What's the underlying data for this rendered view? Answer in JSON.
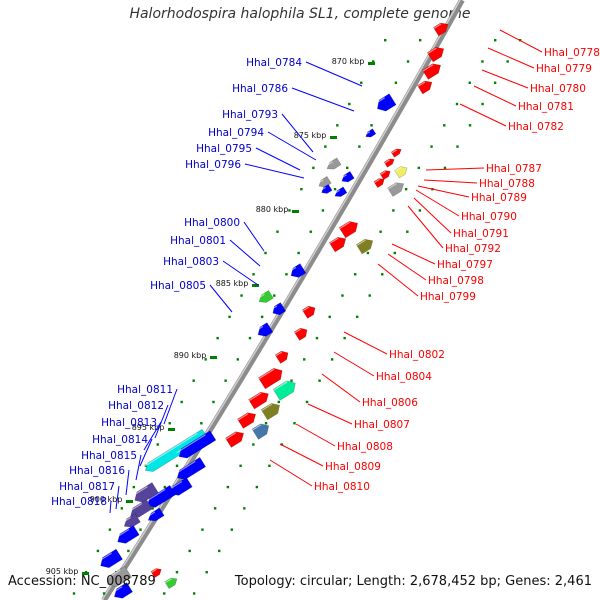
{
  "title": "Halorhodospira halophila SL1, complete genome",
  "footer": {
    "accession": "Accession: NC_008789",
    "summary": "Topology: circular; Length: 2,678,452 bp; Genes: 2,461"
  },
  "colors": {
    "backbone": "#8c8c8c",
    "forward_strand_gene": "#ff0000",
    "reverse_strand_gene": "#0000ff",
    "forward_label": "#ff0000",
    "reverse_label": "#0000cc",
    "tick": "#008000",
    "rna_green": "#33cc33",
    "olive": "#808020",
    "cyan": "#00e5e5",
    "teal": "#00ee99",
    "steel_blue": "#4477aa",
    "slate": "#554499",
    "gray": "#999999",
    "yellow": "#eeee66"
  },
  "scale_ticks": [
    "870 kbp",
    "875 kbp",
    "880 kbp",
    "885 kbp",
    "890 kbp",
    "895 kbp",
    "900 kbp",
    "905 kbp"
  ],
  "reverse_labels": [
    "Hhal_0784",
    "Hhal_0786",
    "Hhal_0793",
    "Hhal_0794",
    "Hhal_0795",
    "Hhal_0796",
    "Hhal_0800",
    "Hhal_0801",
    "Hhal_0803",
    "Hhal_0805",
    "Hhal_0811",
    "Hhal_0812",
    "Hhal_0813",
    "Hhal_0814",
    "Hhal_0815",
    "Hhal_0816",
    "Hhal_0817",
    "Hhal_0818"
  ],
  "forward_labels": [
    "Hhal_0778",
    "Hhal_0779",
    "Hhal_0780",
    "Hhal_0781",
    "Hhal_0782",
    "Hhal_0787",
    "Hhal_0788",
    "Hhal_0789",
    "Hhal_0790",
    "Hhal_0791",
    "Hhal_0792",
    "Hhal_0797",
    "Hhal_0798",
    "Hhal_0799",
    "Hhal_0802",
    "Hhal_0804",
    "Hhal_0806",
    "Hhal_0807",
    "Hhal_0808",
    "Hhal_0809",
    "Hhal_0810"
  ]
}
